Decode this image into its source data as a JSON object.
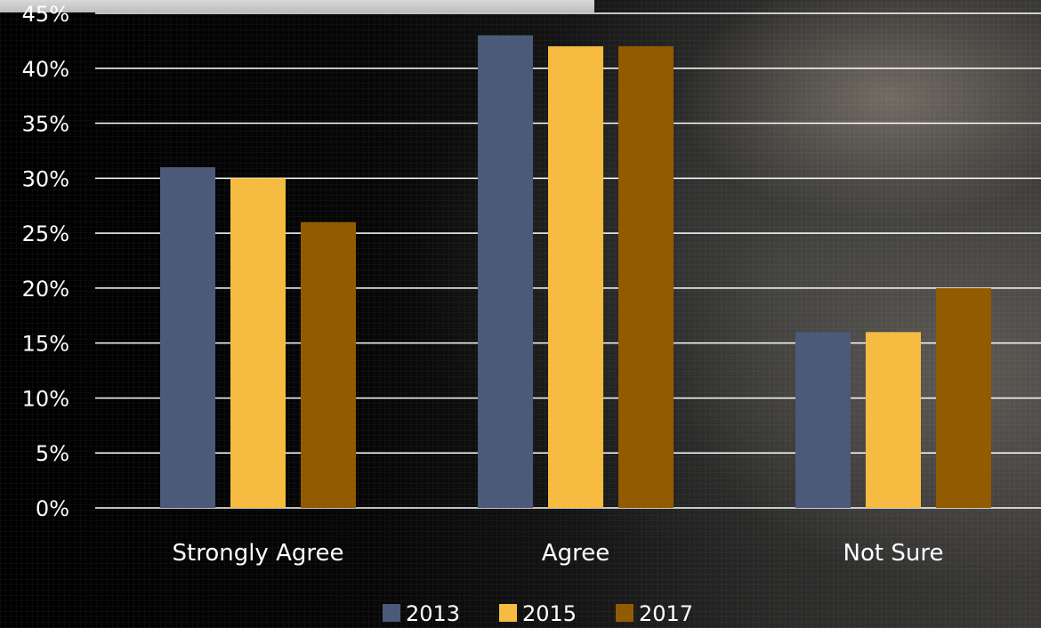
{
  "colors": {
    "series_2013": "#4b5a78",
    "series_2015": "#f5bc41",
    "series_2017": "#935b00",
    "grid": "#ffffff",
    "text": "#ffffff"
  },
  "chart_data": {
    "type": "bar",
    "title": "",
    "xlabel": "",
    "ylabel": "",
    "categories": [
      "Strongly Agree",
      "Agree",
      "Not Sure"
    ],
    "series": [
      {
        "name": "2013",
        "values": [
          31,
          43,
          16
        ]
      },
      {
        "name": "2015",
        "values": [
          30,
          42,
          16
        ]
      },
      {
        "name": "2017",
        "values": [
          26,
          42,
          20
        ]
      }
    ],
    "ylim": [
      0,
      45
    ],
    "y_ticks": [
      "0%",
      "5%",
      "10%",
      "15%",
      "20%",
      "25%",
      "30%",
      "35%",
      "40%",
      "45%"
    ],
    "grid": true,
    "legend": "bottom-center"
  }
}
